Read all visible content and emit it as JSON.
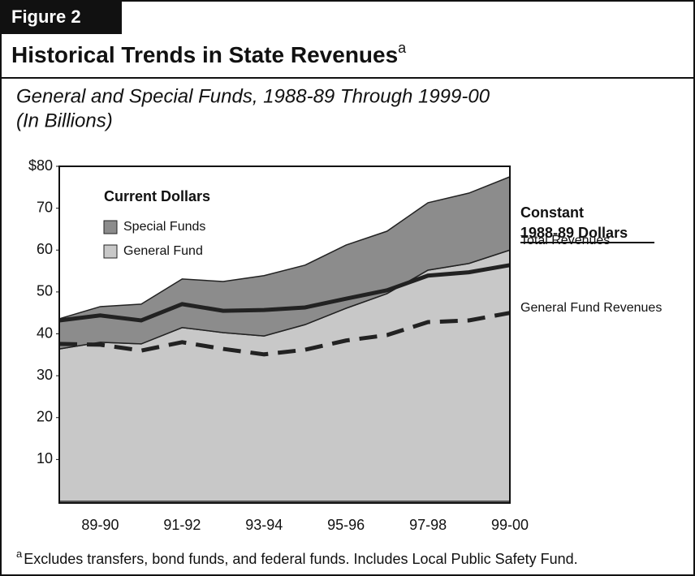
{
  "figure_label": "Figure 2",
  "chart_data": {
    "type": "stacked_area",
    "title": "Historical Trends in State Revenues",
    "title_marker": "a",
    "subtitle": [
      "General and Special Funds, 1988-89 Through 1999-00",
      "(In Billions)"
    ],
    "categories": [
      null,
      "89-90",
      null,
      "91-92",
      null,
      "93-94",
      null,
      "95-96",
      null,
      "97-98",
      null,
      "99-00"
    ],
    "ylim": [
      0,
      80
    ],
    "yticks": [
      {
        "value": 80,
        "label": "$80"
      },
      70,
      60,
      50,
      40,
      30,
      20,
      10
    ],
    "legend_title": "Current Dollars",
    "series": [
      {
        "name": "General Fund",
        "color": "#c8c8c8",
        "values": [
          36.4,
          38,
          37.6,
          41.5,
          40.3,
          39.5,
          42.2,
          46.1,
          49.6,
          55.2,
          56.8,
          60
        ]
      },
      {
        "name": "Special Funds",
        "color": "#8c8c8c",
        "values": [
          7.2,
          8.5,
          9.5,
          11.6,
          12.2,
          14.4,
          14.2,
          15.1,
          14.9,
          16.1,
          16.8,
          17.5
        ]
      }
    ],
    "lines_heading": [
      "Constant",
      "1988-89 Dollars"
    ],
    "lines": [
      {
        "name": "Total Revenues",
        "color": "#222222",
        "dashed": false,
        "values": [
          43.2,
          44.4,
          43.2,
          47.1,
          45.5,
          45.7,
          46.3,
          48.4,
          50.4,
          53.9,
          54.7,
          56.4
        ]
      },
      {
        "name": "General Fund Revenues",
        "color": "#222222",
        "dashed": true,
        "values": [
          37.6,
          37.4,
          36,
          38,
          36.4,
          35.1,
          36.2,
          38.4,
          39.7,
          42.8,
          43.2,
          45
        ]
      }
    ]
  },
  "footnote": {
    "marker": "a",
    "text": "Excludes transfers, bond funds, and federal funds. Includes Local Public Safety Fund."
  }
}
